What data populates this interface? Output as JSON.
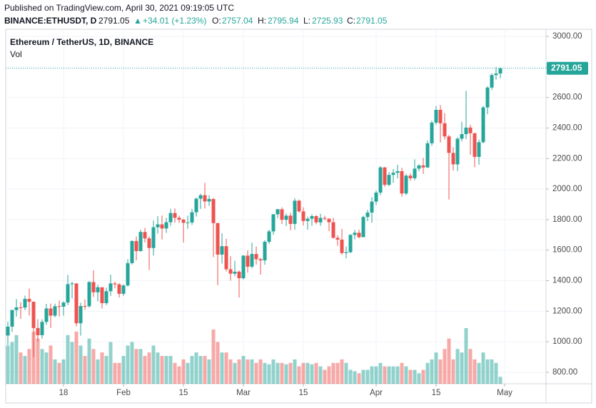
{
  "header": {
    "published": "Published on TradingView.com, April 30, 2021 09:19:05 UTC",
    "symbol": "BINANCE:ETHUSDT, D",
    "change_arrow": "▲",
    "change": "+34.01 (+1.23%)",
    "o_label": "O:",
    "h_label": "H:",
    "l_label": "L:",
    "c_label": "C:"
  },
  "chart_data": {
    "type": "candlestick",
    "title": "Ethereum / TetherUS, 1D, BINANCE",
    "volume_label": "Vol",
    "x": [
      "2021-01-05",
      "2021-01-06",
      "2021-01-07",
      "2021-01-08",
      "2021-01-09",
      "2021-01-10",
      "2021-01-11",
      "2021-01-12",
      "2021-01-13",
      "2021-01-14",
      "2021-01-15",
      "2021-01-16",
      "2021-01-17",
      "2021-01-18",
      "2021-01-19",
      "2021-01-20",
      "2021-01-21",
      "2021-01-22",
      "2021-01-23",
      "2021-01-24",
      "2021-01-25",
      "2021-01-26",
      "2021-01-27",
      "2021-01-28",
      "2021-01-29",
      "2021-01-30",
      "2021-01-31",
      "2021-02-01",
      "2021-02-02",
      "2021-02-03",
      "2021-02-04",
      "2021-02-05",
      "2021-02-06",
      "2021-02-07",
      "2021-02-08",
      "2021-02-09",
      "2021-02-10",
      "2021-02-11",
      "2021-02-12",
      "2021-02-13",
      "2021-02-14",
      "2021-02-15",
      "2021-02-16",
      "2021-02-17",
      "2021-02-18",
      "2021-02-19",
      "2021-02-20",
      "2021-02-21",
      "2021-02-22",
      "2021-02-23",
      "2021-02-24",
      "2021-02-25",
      "2021-02-26",
      "2021-02-27",
      "2021-02-28",
      "2021-03-01",
      "2021-03-02",
      "2021-03-03",
      "2021-03-04",
      "2021-03-05",
      "2021-03-06",
      "2021-03-07",
      "2021-03-08",
      "2021-03-09",
      "2021-03-10",
      "2021-03-11",
      "2021-03-12",
      "2021-03-13",
      "2021-03-14",
      "2021-03-15",
      "2021-03-16",
      "2021-03-17",
      "2021-03-18",
      "2021-03-19",
      "2021-03-20",
      "2021-03-21",
      "2021-03-22",
      "2021-03-23",
      "2021-03-24",
      "2021-03-25",
      "2021-03-26",
      "2021-03-27",
      "2021-03-28",
      "2021-03-29",
      "2021-03-30",
      "2021-03-31",
      "2021-04-01",
      "2021-04-02",
      "2021-04-03",
      "2021-04-04",
      "2021-04-05",
      "2021-04-06",
      "2021-04-07",
      "2021-04-08",
      "2021-04-09",
      "2021-04-10",
      "2021-04-11",
      "2021-04-12",
      "2021-04-13",
      "2021-04-14",
      "2021-04-15",
      "2021-04-16",
      "2021-04-17",
      "2021-04-18",
      "2021-04-19",
      "2021-04-20",
      "2021-04-21",
      "2021-04-22",
      "2021-04-23",
      "2021-04-24",
      "2021-04-25",
      "2021-04-26",
      "2021-04-27",
      "2021-04-28",
      "2021-04-29",
      "2021-04-30"
    ],
    "open": [
      1041,
      1099,
      1208,
      1225,
      1224,
      1281,
      1262,
      1090,
      1043,
      1130,
      1218,
      1171,
      1233,
      1230,
      1257,
      1377,
      1382,
      1121,
      1234,
      1233,
      1391,
      1324,
      1357,
      1253,
      1331,
      1382,
      1376,
      1314,
      1369,
      1515,
      1660,
      1594,
      1719,
      1677,
      1614,
      1750,
      1769,
      1742,
      1783,
      1843,
      1812,
      1800,
      1779,
      1781,
      1848,
      1937,
      1960,
      1919,
      1935,
      1777,
      1571,
      1626,
      1475,
      1446,
      1459,
      1416,
      1564,
      1492,
      1575,
      1541,
      1533,
      1655,
      1723,
      1835,
      1868,
      1799,
      1826,
      1772,
      1924,
      1854,
      1791,
      1806,
      1823,
      1782,
      1811,
      1806,
      1783,
      1681,
      1669,
      1581,
      1587,
      1700,
      1714,
      1685,
      1817,
      1846,
      1918,
      1977,
      2142,
      2028,
      2093,
      2107,
      2117,
      1971,
      2088,
      2071,
      2134,
      2155,
      2142,
      2300,
      2435,
      2519,
      2431,
      2345,
      2237,
      2162,
      2330,
      2360,
      2403,
      2366,
      2211,
      2307,
      2535,
      2665,
      2747,
      2757.04
    ],
    "high": [
      1131,
      1210,
      1280,
      1260,
      1302,
      1348,
      1264,
      1148,
      1148,
      1248,
      1250,
      1250,
      1270,
      1265,
      1438,
      1393,
      1383,
      1256,
      1277,
      1397,
      1468,
      1373,
      1357,
      1354,
      1440,
      1393,
      1384,
      1375,
      1540,
      1664,
      1690,
      1735,
      1745,
      1689,
      1794,
      1823,
      1827,
      1812,
      1871,
      1873,
      1826,
      1806,
      1826,
      1870,
      1945,
      1970,
      2041,
      1960,
      1941,
      1780,
      1710,
      1674,
      1560,
      1530,
      1468,
      1568,
      1598,
      1649,
      1624,
      1550,
      1665,
      1735,
      1837,
      1870,
      1880,
      1840,
      1845,
      1940,
      1932,
      1880,
      1820,
      1835,
      1830,
      1838,
      1825,
      1808,
      1812,
      1698,
      1740,
      1625,
      1705,
      1733,
      1735,
      1825,
      1864,
      1947,
      1990,
      2150,
      2145,
      2110,
      2131,
      2160,
      2140,
      2100,
      2102,
      2195,
      2163,
      2204,
      2318,
      2448,
      2545,
      2550,
      2498,
      2355,
      2275,
      2340,
      2440,
      2644,
      2421,
      2368,
      2324,
      2544,
      2673,
      2758,
      2799,
      2795.94
    ],
    "low": [
      977,
      1064,
      1165,
      1150,
      1207,
      1171,
      900,
      1003,
      1020,
      1111,
      1090,
      1160,
      1166,
      1171,
      1240,
      1284,
      1100,
      1040,
      1209,
      1223,
      1293,
      1265,
      1218,
      1240,
      1300,
      1350,
      1290,
      1300,
      1360,
      1506,
      1533,
      1590,
      1650,
      1470,
      1565,
      1708,
      1670,
      1713,
      1760,
      1780,
      1780,
      1650,
      1740,
      1765,
      1820,
      1870,
      1873,
      1890,
      1555,
      1371,
      1512,
      1460,
      1400,
      1430,
      1290,
      1408,
      1453,
      1482,
      1505,
      1440,
      1505,
      1640,
      1700,
      1810,
      1771,
      1758,
      1730,
      1735,
      1845,
      1762,
      1735,
      1760,
      1770,
      1760,
      1795,
      1725,
      1676,
      1628,
      1570,
      1546,
      1580,
      1670,
      1677,
      1685,
      1790,
      1780,
      1895,
      1960,
      2015,
      2020,
      2041,
      2070,
      1950,
      1960,
      2055,
      2058,
      2118,
      2100,
      2137,
      2283,
      2420,
      2305,
      2326,
      1932,
      2122,
      2117,
      2313,
      2327,
      2225,
      2143,
      2160,
      2300,
      2490,
      2650,
      2717,
      2725.93
    ],
    "close": [
      1099,
      1208,
      1225,
      1224,
      1281,
      1262,
      1090,
      1043,
      1130,
      1218,
      1171,
      1233,
      1230,
      1257,
      1377,
      1382,
      1121,
      1234,
      1233,
      1391,
      1324,
      1357,
      1253,
      1331,
      1382,
      1376,
      1314,
      1369,
      1515,
      1660,
      1594,
      1719,
      1677,
      1614,
      1750,
      1769,
      1742,
      1783,
      1843,
      1812,
      1800,
      1779,
      1781,
      1848,
      1937,
      1960,
      1919,
      1935,
      1777,
      1571,
      1626,
      1475,
      1446,
      1459,
      1416,
      1564,
      1492,
      1575,
      1541,
      1533,
      1655,
      1723,
      1835,
      1868,
      1799,
      1826,
      1772,
      1924,
      1854,
      1791,
      1806,
      1823,
      1782,
      1811,
      1806,
      1783,
      1681,
      1669,
      1581,
      1587,
      1700,
      1714,
      1685,
      1817,
      1846,
      1918,
      1977,
      2142,
      2028,
      2093,
      2107,
      2117,
      1971,
      2088,
      2071,
      2134,
      2155,
      2142,
      2300,
      2435,
      2519,
      2431,
      2345,
      2237,
      2162,
      2330,
      2360,
      2403,
      2366,
      2211,
      2307,
      2535,
      2665,
      2747,
      2757,
      2791.05
    ],
    "volume": [
      5.5,
      6.0,
      7.0,
      4.5,
      4.0,
      5.0,
      7.5,
      6.5,
      5.0,
      4.5,
      5.5,
      3.5,
      3.0,
      3.5,
      7.0,
      6.0,
      7.5,
      5.5,
      4.0,
      6.5,
      5.0,
      3.5,
      4.5,
      4.0,
      6.0,
      3.0,
      3.0,
      4.0,
      5.5,
      6.0,
      5.0,
      5.0,
      4.0,
      4.5,
      5.5,
      4.5,
      4.0,
      4.0,
      4.0,
      3.0,
      2.5,
      3.5,
      3.0,
      4.0,
      4.5,
      4.0,
      4.0,
      3.5,
      7.8,
      6.0,
      4.5,
      4.5,
      3.5,
      3.0,
      3.5,
      4.0,
      3.5,
      3.5,
      3.0,
      3.5,
      3.0,
      2.8,
      3.5,
      3.0,
      3.0,
      2.8,
      3.0,
      3.5,
      2.5,
      3.0,
      3.0,
      2.8,
      3.0,
      2.5,
      2.0,
      2.5,
      3.0,
      3.0,
      3.5,
      3.0,
      2.0,
      1.8,
      1.5,
      2.0,
      2.0,
      2.5,
      2.5,
      3.0,
      2.5,
      2.5,
      2.5,
      2.5,
      3.0,
      2.5,
      2.0,
      2.0,
      1.5,
      2.0,
      3.0,
      3.5,
      4.5,
      3.5,
      5.0,
      6.5,
      3.5,
      5.0,
      4.5,
      8.0,
      5.0,
      3.5,
      3.0,
      4.5,
      3.5,
      3.5,
      3.0,
      1.0
    ],
    "up_color": "#26a69a",
    "down_color": "#ef5350",
    "ylim": [
      725,
      3047
    ],
    "yticks": [
      {
        "value": 800,
        "label": "800.00"
      },
      {
        "value": 1000,
        "label": "1000.00"
      },
      {
        "value": 1200,
        "label": "1200.00"
      },
      {
        "value": 1400,
        "label": "1400.00"
      },
      {
        "value": 1600,
        "label": "1600.00"
      },
      {
        "value": 1800,
        "label": "1800.00"
      },
      {
        "value": 2000,
        "label": "2000.00"
      },
      {
        "value": 2200,
        "label": "2200.00"
      },
      {
        "value": 2400,
        "label": "2400.00"
      },
      {
        "value": 2600,
        "label": "2600.00"
      },
      {
        "value": 2800,
        "label": "2800.00"
      },
      {
        "value": 3000,
        "label": "3000.00"
      }
    ],
    "xticks": [
      {
        "value": "2021-01-18",
        "label": "18"
      },
      {
        "value": "2021-02-01",
        "label": "Feb"
      },
      {
        "value": "2021-02-15",
        "label": "15"
      },
      {
        "value": "2021-03-01",
        "label": "Mar"
      },
      {
        "value": "2021-03-15",
        "label": "15"
      },
      {
        "value": "2021-04-01",
        "label": "Apr"
      },
      {
        "value": "2021-04-15",
        "label": "15"
      },
      {
        "value": "2021-05-01",
        "label": "May"
      }
    ],
    "grid": true
  }
}
